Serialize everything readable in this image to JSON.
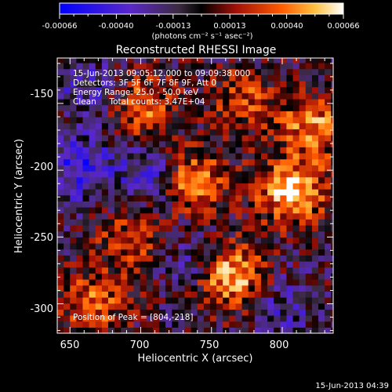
{
  "colorbar": {
    "ticks": [
      "-0.00066",
      "-0.00040",
      "-0.00013",
      "0.00013",
      "0.00040",
      "0.00066"
    ],
    "units": "(photons cm⁻² s⁻¹ asec⁻²)"
  },
  "footer_timestamp": "15-Jun-2013 04:39",
  "chart_data": {
    "type": "heatmap",
    "title": "Reconstructed RHESSI Image",
    "xlabel": "Heliocentric X (arcsec)",
    "ylabel": "Heliocentric Y (arcsec)",
    "xlim": [
      641,
      836
    ],
    "ylim": [
      -322,
      -116
    ],
    "x_ticks": [
      650,
      700,
      750,
      800
    ],
    "y_ticks": [
      -150,
      -200,
      -250,
      -300
    ],
    "annotations": [
      "15-Jun-2013 09:05:12.000 to 09:09:38.000",
      "Detectors: 3F 5F 6F 7F 8F 9F, Att 0",
      "Energy Range: 25.0 - 50.0 keV",
      "Clean     Total counts: 3.47E+04",
      "Position of Peak = [804,-218]"
    ],
    "peak_position": [
      804,
      -218
    ],
    "color_range": [
      -0.00066,
      0.00066
    ],
    "bright_regions": [
      {
        "x": 760,
        "y": -280,
        "value": 0.00066
      },
      {
        "x": 804,
        "y": -218,
        "value": 0.00066
      },
      {
        "x": 735,
        "y": -210,
        "value": 0.0005
      },
      {
        "x": 700,
        "y": -155,
        "value": 0.0004
      },
      {
        "x": 820,
        "y": -170,
        "value": 0.0005
      },
      {
        "x": 690,
        "y": -255,
        "value": 0.0003
      },
      {
        "x": 665,
        "y": -300,
        "value": 0.0004
      },
      {
        "x": 770,
        "y": -150,
        "value": 0.00035
      }
    ],
    "dark_regions": [
      {
        "x": 655,
        "y": -200,
        "value": -0.0004
      },
      {
        "x": 660,
        "y": -140,
        "value": -0.00025
      },
      {
        "x": 705,
        "y": -205,
        "value": -0.0003
      },
      {
        "x": 740,
        "y": -270,
        "value": -0.00025
      },
      {
        "x": 800,
        "y": -305,
        "value": -0.0002
      }
    ]
  }
}
